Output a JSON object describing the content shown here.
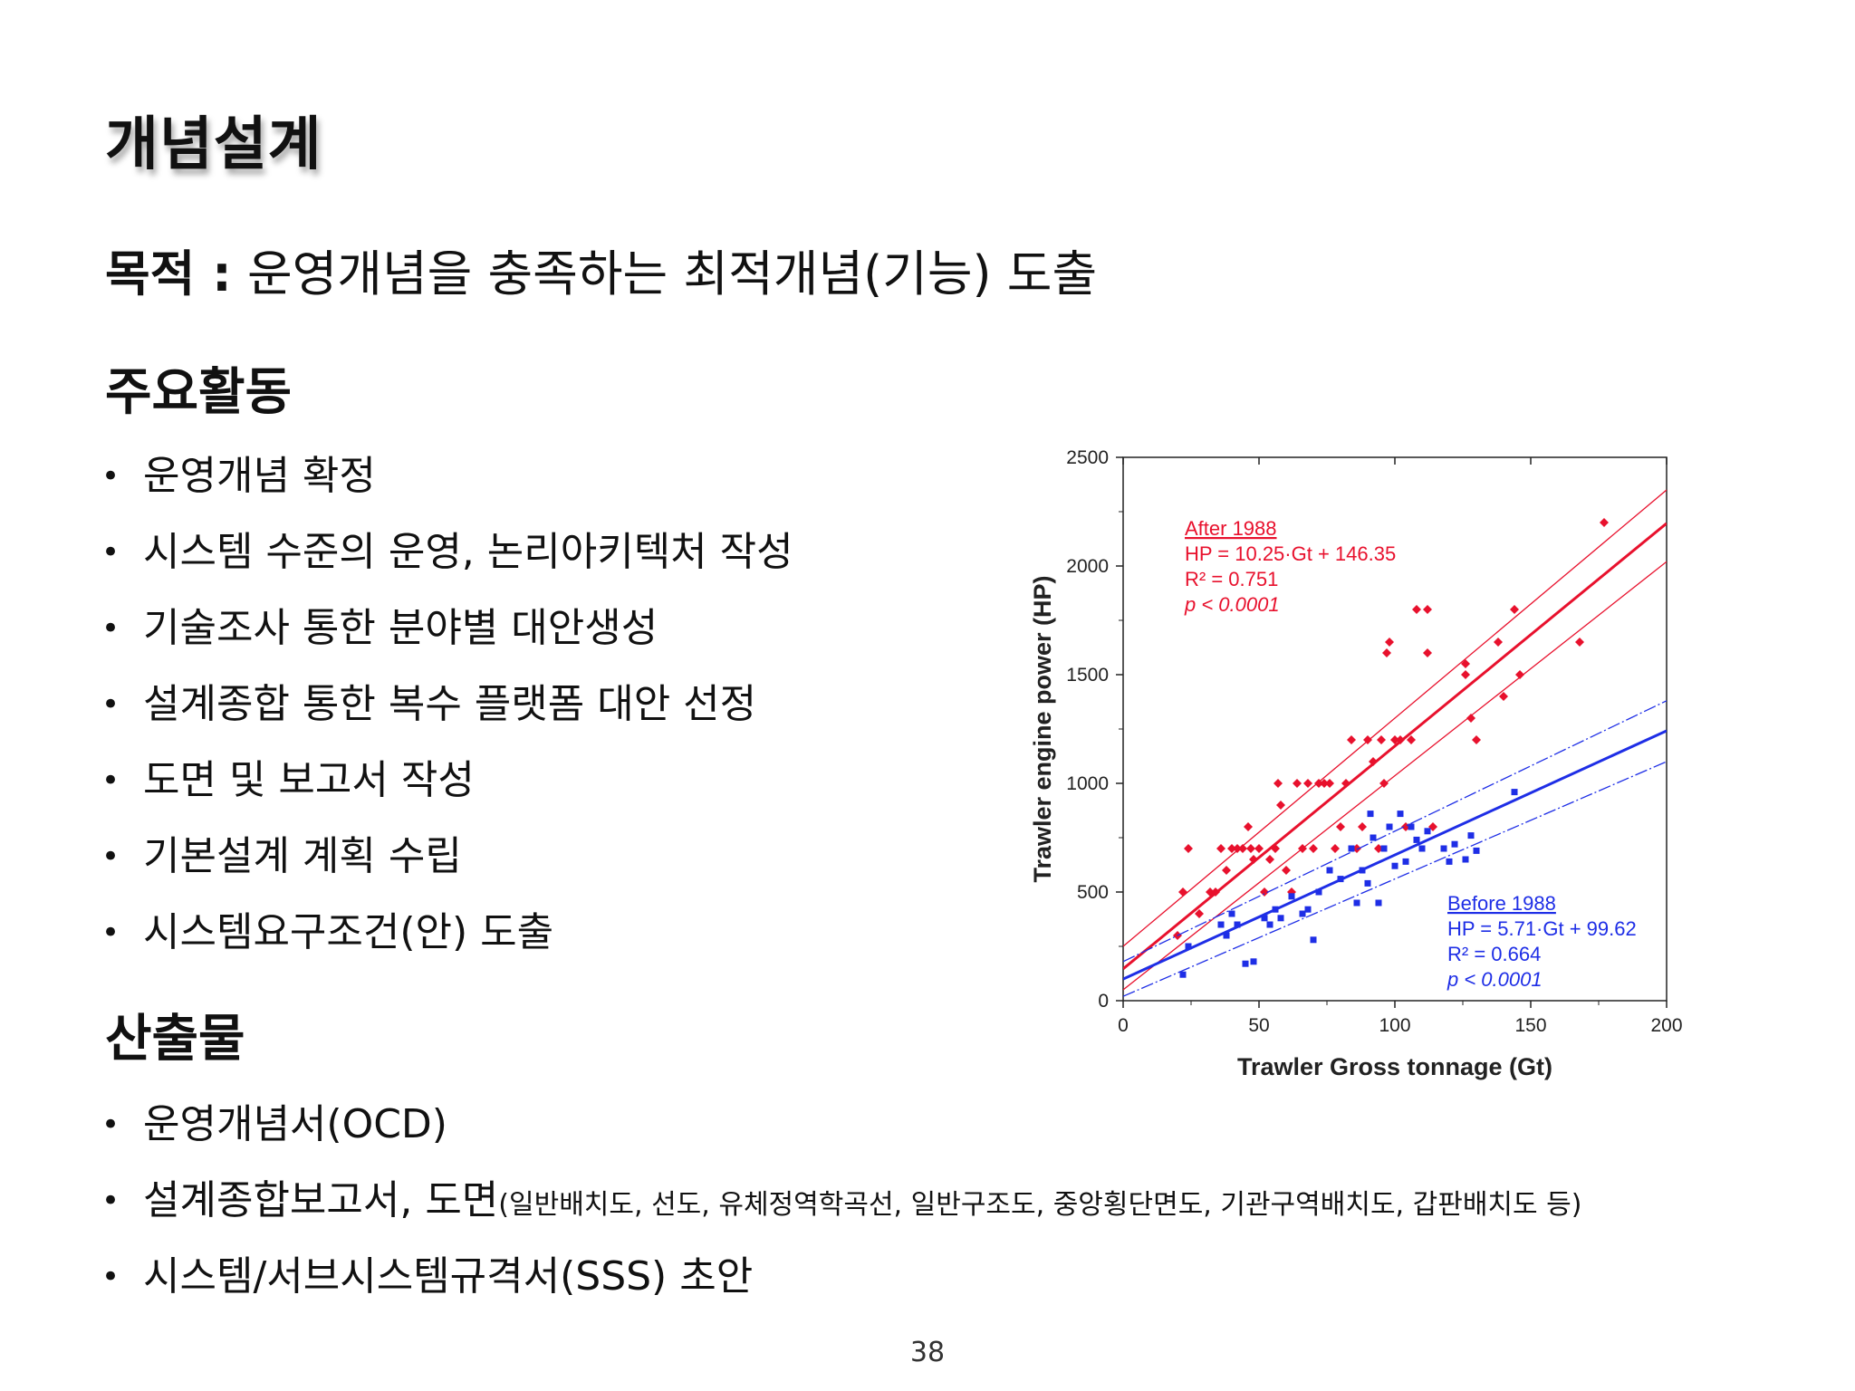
{
  "slide": {
    "title": "개념설계",
    "purpose_label": "목적 :",
    "purpose_text": "운영개념을 충족하는 최적개념(기능) 도출",
    "page_number": "38"
  },
  "activities": {
    "heading": "주요활동",
    "items": [
      "운영개념 확정",
      "시스템 수준의 운영, 논리아키텍처 작성",
      "기술조사 통한 분야별 대안생성",
      "설계종합 통한 복수 플랫폼 대안 선정",
      "도면 및 보고서 작성",
      "기본설계 계획 수립",
      "시스템요구조건(안) 도출"
    ]
  },
  "outputs": {
    "heading": "산출물",
    "item1": "운영개념서(OCD)",
    "item2_main": "설계종합보고서, 도면",
    "item2_note": "(일반배치도, 선도, 유체정역학곡선, 일반구조도, 중앙횡단면도, 기관구역배치도, 갑판배치도 등)",
    "item3": "시스템/서브시스템규격서(SSS) 초안"
  },
  "chart_data": {
    "type": "scatter",
    "xlabel": "Trawler Gross tonnage (Gt)",
    "ylabel": "Trawler engine power (HP)",
    "xlim": [
      0,
      200
    ],
    "ylim": [
      0,
      2500
    ],
    "xticks": [
      0,
      50,
      100,
      150,
      200
    ],
    "yticks": [
      0,
      500,
      1000,
      1500,
      2000,
      2500
    ],
    "series": [
      {
        "color": "#e8112d",
        "marker": "diamond",
        "annotation": {
          "title": "After 1988",
          "equation": "HP = 10.25·Gt + 146.35",
          "r2": "R² = 0.751",
          "p": "p < 0.0001"
        },
        "fit": {
          "slope": 10.25,
          "intercept": 146.35
        },
        "ci_upper": [
          [
            0,
            250
          ],
          [
            200,
            2350
          ]
        ],
        "ci_lower": [
          [
            0,
            50
          ],
          [
            200,
            2020
          ]
        ],
        "points": [
          [
            20,
            300
          ],
          [
            22,
            500
          ],
          [
            24,
            700
          ],
          [
            28,
            400
          ],
          [
            32,
            500
          ],
          [
            34,
            500
          ],
          [
            36,
            700
          ],
          [
            38,
            600
          ],
          [
            40,
            700
          ],
          [
            42,
            700
          ],
          [
            44,
            700
          ],
          [
            46,
            800
          ],
          [
            47,
            700
          ],
          [
            48,
            650
          ],
          [
            50,
            700
          ],
          [
            52,
            500
          ],
          [
            54,
            650
          ],
          [
            56,
            700
          ],
          [
            57,
            1000
          ],
          [
            58,
            900
          ],
          [
            60,
            600
          ],
          [
            62,
            500
          ],
          [
            64,
            1000
          ],
          [
            66,
            700
          ],
          [
            68,
            1000
          ],
          [
            70,
            700
          ],
          [
            72,
            1000
          ],
          [
            74,
            1000
          ],
          [
            76,
            1000
          ],
          [
            78,
            700
          ],
          [
            80,
            800
          ],
          [
            82,
            1000
          ],
          [
            84,
            1200
          ],
          [
            86,
            700
          ],
          [
            88,
            800
          ],
          [
            90,
            1200
          ],
          [
            92,
            1100
          ],
          [
            94,
            700
          ],
          [
            95,
            1200
          ],
          [
            96,
            1000
          ],
          [
            97,
            1600
          ],
          [
            98,
            1650
          ],
          [
            100,
            1200
          ],
          [
            102,
            1200
          ],
          [
            104,
            800
          ],
          [
            106,
            1200
          ],
          [
            108,
            1800
          ],
          [
            112,
            1800
          ],
          [
            112,
            1600
          ],
          [
            114,
            800
          ],
          [
            126,
            1550
          ],
          [
            126,
            1500
          ],
          [
            128,
            1300
          ],
          [
            130,
            1200
          ],
          [
            138,
            1650
          ],
          [
            140,
            1400
          ],
          [
            144,
            1800
          ],
          [
            146,
            1500
          ],
          [
            168,
            1650
          ],
          [
            177,
            2200
          ]
        ]
      },
      {
        "color": "#1e2ee6",
        "marker": "square",
        "annotation": {
          "title": "Before 1988",
          "equation": "HP = 5.71·Gt + 99.62",
          "r2": "R² = 0.664",
          "p": "p < 0.0001"
        },
        "fit": {
          "slope": 5.71,
          "intercept": 99.62
        },
        "ci_upper": [
          [
            0,
            180
          ],
          [
            200,
            1380
          ]
        ],
        "ci_lower": [
          [
            0,
            20
          ],
          [
            200,
            1100
          ]
        ],
        "points": [
          [
            22,
            120
          ],
          [
            24,
            250
          ],
          [
            36,
            350
          ],
          [
            38,
            300
          ],
          [
            40,
            400
          ],
          [
            42,
            350
          ],
          [
            45,
            170
          ],
          [
            48,
            180
          ],
          [
            52,
            380
          ],
          [
            54,
            350
          ],
          [
            56,
            420
          ],
          [
            58,
            380
          ],
          [
            62,
            480
          ],
          [
            66,
            400
          ],
          [
            68,
            420
          ],
          [
            70,
            280
          ],
          [
            72,
            500
          ],
          [
            76,
            600
          ],
          [
            80,
            560
          ],
          [
            84,
            700
          ],
          [
            86,
            450
          ],
          [
            88,
            600
          ],
          [
            90,
            540
          ],
          [
            91,
            860
          ],
          [
            92,
            750
          ],
          [
            94,
            450
          ],
          [
            96,
            700
          ],
          [
            98,
            800
          ],
          [
            100,
            620
          ],
          [
            102,
            860
          ],
          [
            104,
            640
          ],
          [
            106,
            800
          ],
          [
            108,
            740
          ],
          [
            110,
            700
          ],
          [
            112,
            780
          ],
          [
            118,
            700
          ],
          [
            120,
            640
          ],
          [
            122,
            720
          ],
          [
            126,
            650
          ],
          [
            128,
            760
          ],
          [
            130,
            690
          ],
          [
            144,
            960
          ]
        ]
      }
    ]
  }
}
